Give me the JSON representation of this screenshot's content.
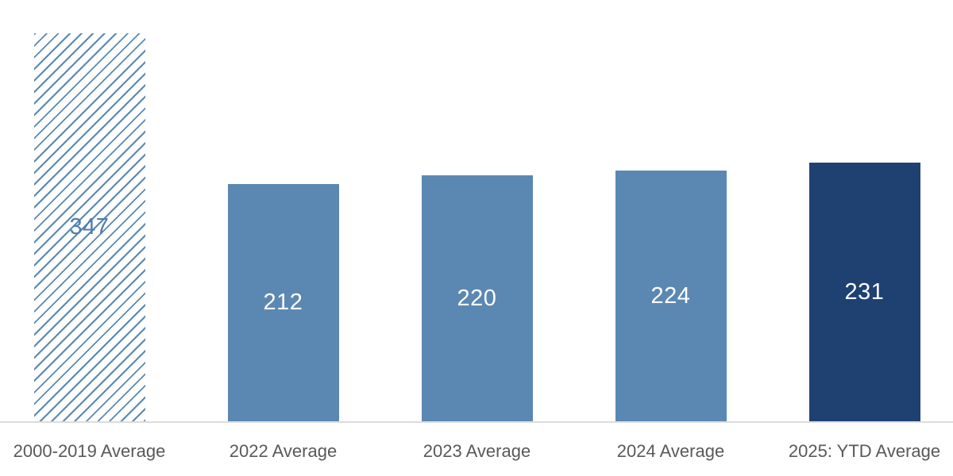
{
  "chart_data": {
    "type": "bar",
    "title": "",
    "xlabel": "",
    "ylabel": "",
    "categories": [
      "2000-2019 Average",
      "2022 Average",
      "2023 Average",
      "2024 Average",
      "2025: YTD Average"
    ],
    "values": [
      347,
      212,
      220,
      224,
      231
    ],
    "bars": [
      {
        "category": "2000-2019 Average",
        "value": 347,
        "data_label": "347",
        "fill": "hatched",
        "color": "#5b88b2",
        "label_color": "#4d7dae"
      },
      {
        "category": "2022 Average",
        "value": 212,
        "data_label": "212",
        "fill": "solid",
        "color": "#5b88b2",
        "label_color": "#ffffff"
      },
      {
        "category": "2023 Average",
        "value": 220,
        "data_label": "220",
        "fill": "solid",
        "color": "#5b88b2",
        "label_color": "#ffffff"
      },
      {
        "category": "2024 Average",
        "value": 224,
        "data_label": "224",
        "fill": "solid",
        "color": "#5b88b2",
        "label_color": "#ffffff"
      },
      {
        "category": "2025: YTD Average",
        "value": 231,
        "data_label": "231",
        "fill": "solid",
        "color": "#1e4172",
        "label_color": "#ffffff"
      }
    ],
    "ylim": [
      0,
      375
    ],
    "grid": false,
    "legend": false,
    "data_labels_position": "inside-center",
    "colors": {
      "primary_bar": "#5b88b2",
      "highlight_bar": "#1e4172",
      "hatch_line": "#5b88b2",
      "hatched_value_text": "#4d7dae",
      "solid_value_text": "#ffffff",
      "axis_line": "#dcdcdc",
      "category_label_text": "#595959",
      "background": "#ffffff"
    }
  }
}
